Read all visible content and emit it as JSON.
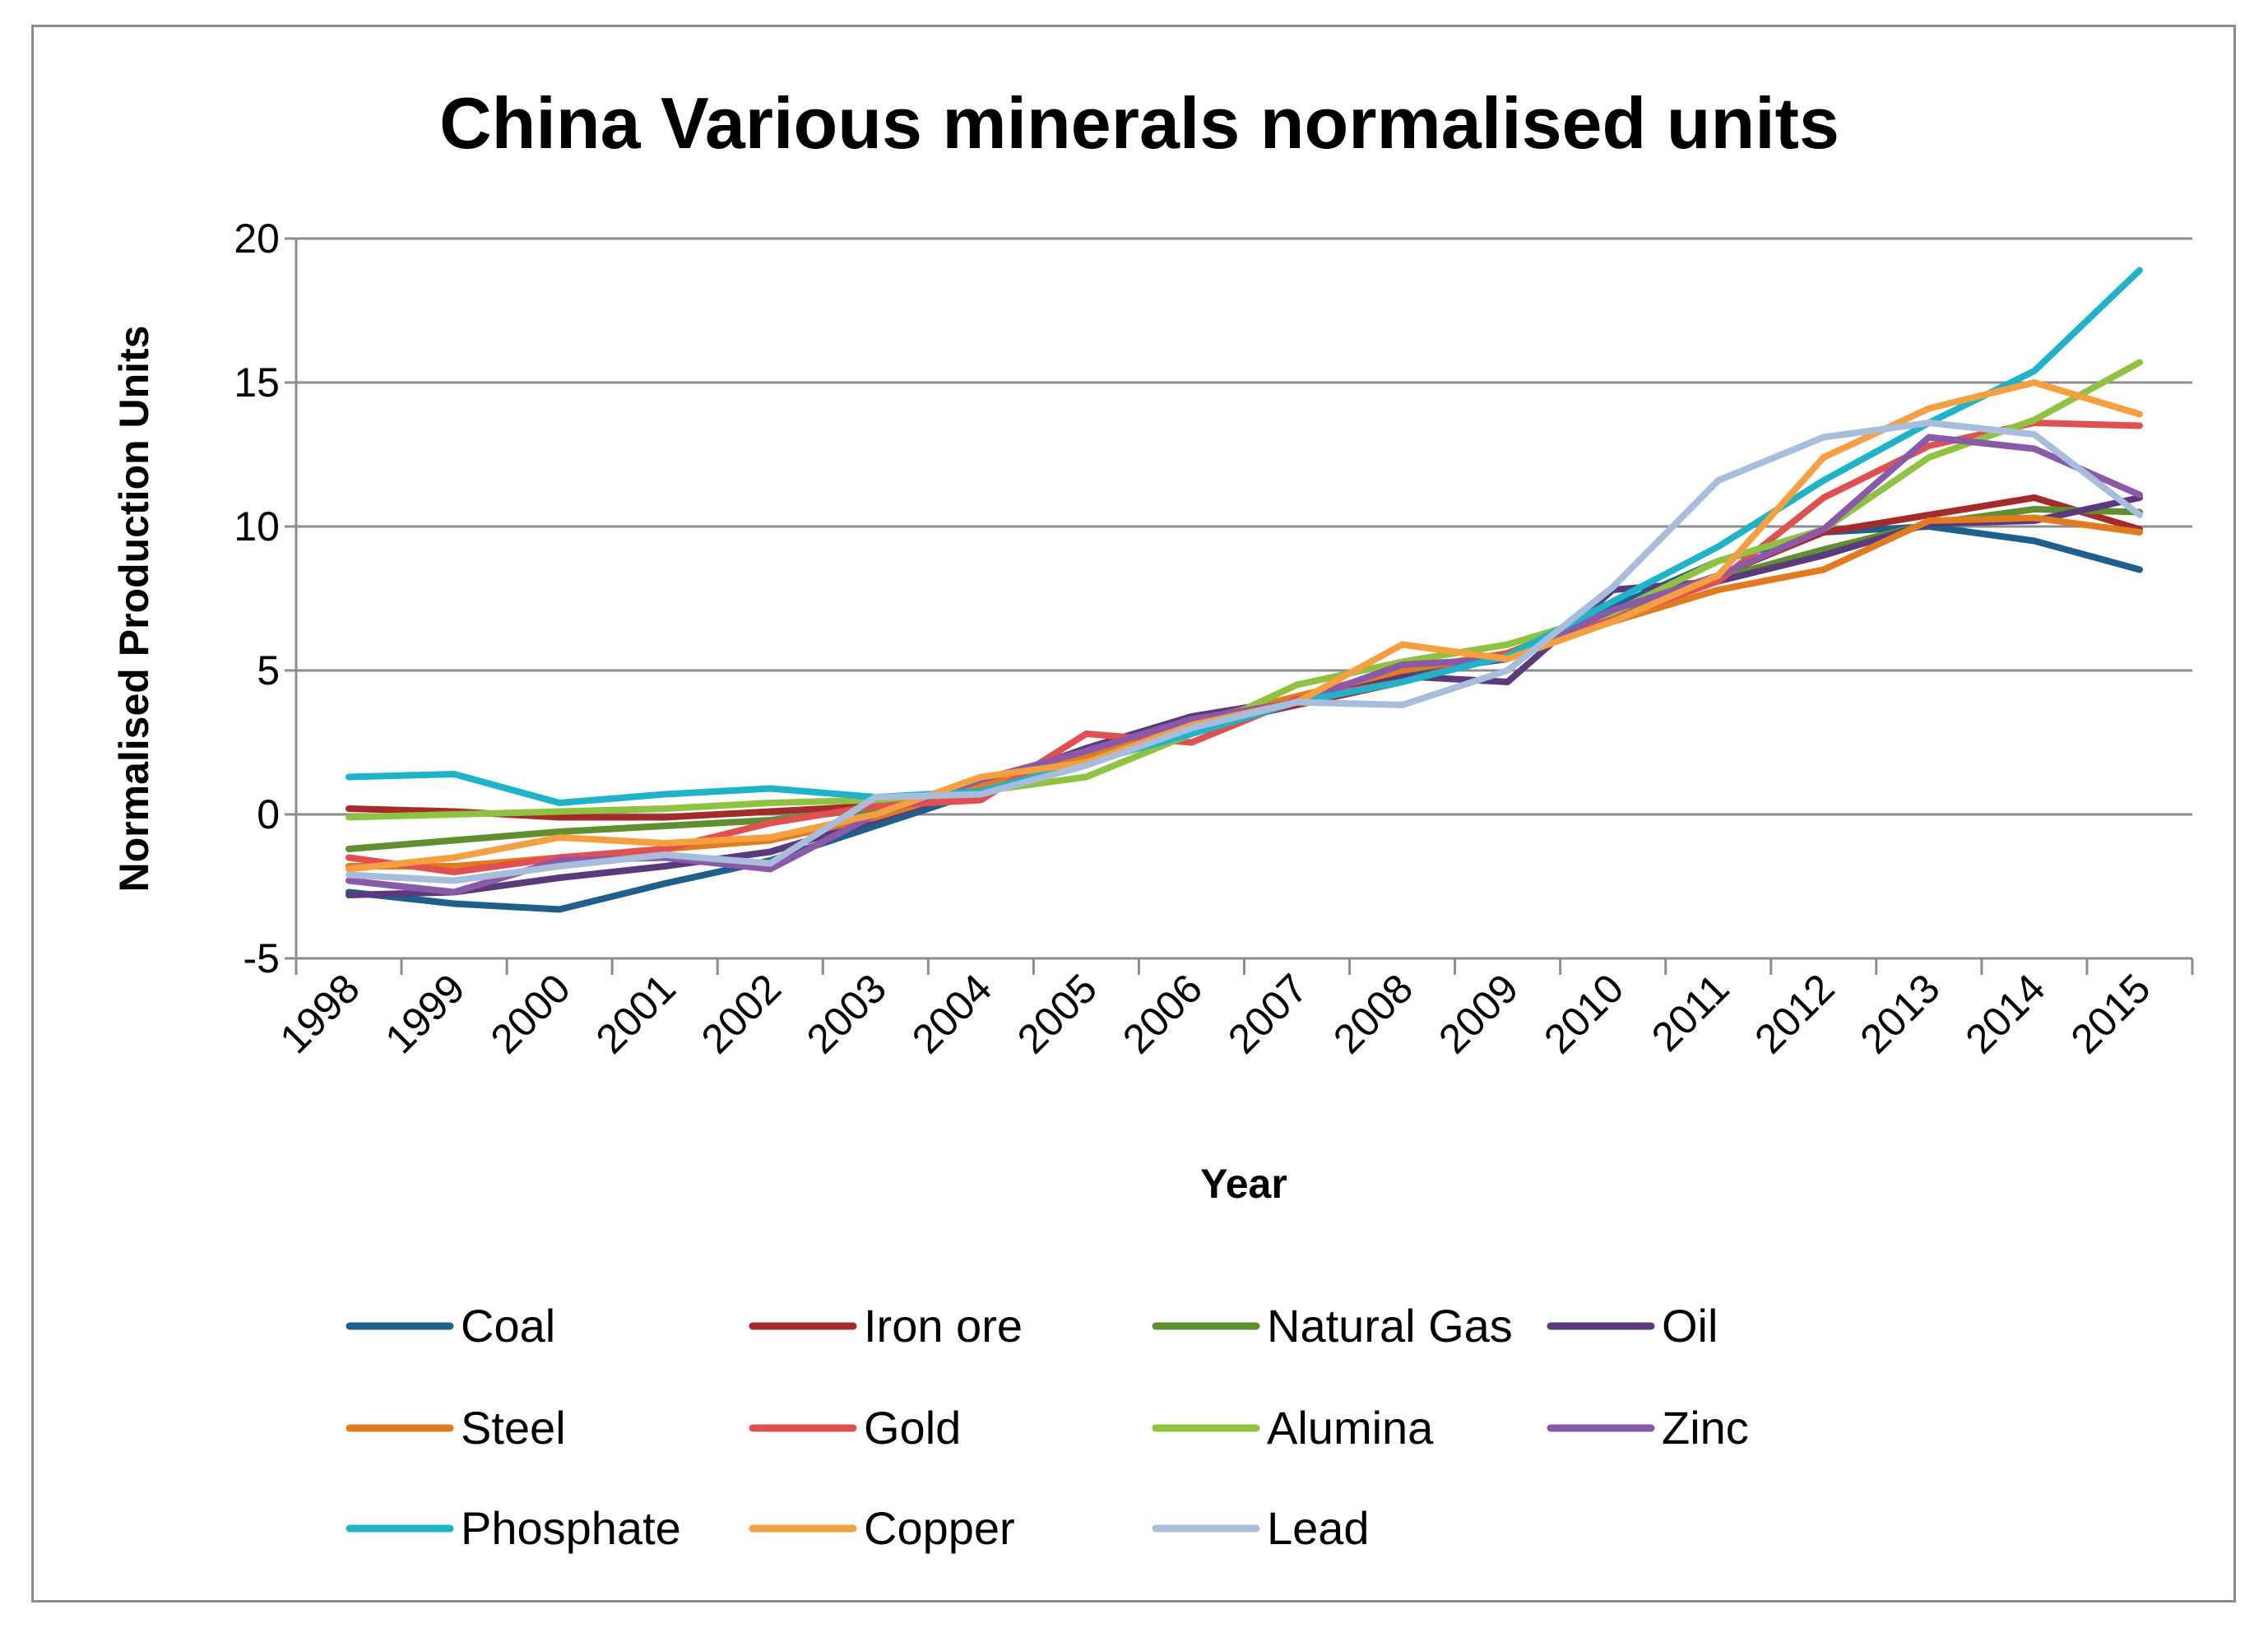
{
  "chart_data": {
    "type": "line",
    "title": "China Various minerals normalised units",
    "xlabel": "Year",
    "ylabel": "Normalised Production Units",
    "ylim": [
      -5,
      20
    ],
    "yticks": [
      -5,
      0,
      5,
      10,
      15,
      20
    ],
    "grid": true,
    "legend_position": "bottom",
    "categories": [
      "1998",
      "1999",
      "2000",
      "2001",
      "2002",
      "2003",
      "2004",
      "2005",
      "2006",
      "2007",
      "2008",
      "2009",
      "2010",
      "2011",
      "2012",
      "2013",
      "2014",
      "2015"
    ],
    "series": [
      {
        "name": "Coal",
        "color": "#1f5f8b",
        "values": [
          -2.7,
          -3.1,
          -3.3,
          -2.4,
          -1.6,
          -0.4,
          0.8,
          2.0,
          3.2,
          4.0,
          4.9,
          5.4,
          7.2,
          8.8,
          9.8,
          10.0,
          9.5,
          8.5
        ]
      },
      {
        "name": "Iron ore",
        "color": "#a52a2a",
        "values": [
          0.2,
          0.1,
          -0.1,
          -0.1,
          0.1,
          0.3,
          0.7,
          1.8,
          3.0,
          3.8,
          4.6,
          5.6,
          7.0,
          8.3,
          9.8,
          10.4,
          11.0,
          9.9
        ]
      },
      {
        "name": "Natural Gas",
        "color": "#5f8f2f",
        "values": [
          -1.2,
          -0.9,
          -0.6,
          -0.4,
          -0.2,
          0.2,
          0.8,
          1.8,
          3.0,
          4.0,
          5.0,
          5.6,
          7.0,
          8.2,
          9.2,
          10.1,
          10.6,
          10.5
        ]
      },
      {
        "name": "Oil",
        "color": "#5a3a7a",
        "values": [
          -2.8,
          -2.7,
          -2.2,
          -1.8,
          -1.3,
          -0.2,
          1.0,
          2.3,
          3.4,
          4.0,
          4.8,
          4.6,
          7.8,
          8.1,
          9.0,
          10.1,
          10.2,
          11.0
        ]
      },
      {
        "name": "Steel",
        "color": "#e07b20",
        "values": [
          -1.8,
          -1.8,
          -1.5,
          -1.2,
          -0.9,
          -0.1,
          1.0,
          2.0,
          3.2,
          4.1,
          5.0,
          5.6,
          6.7,
          7.8,
          8.5,
          10.2,
          10.3,
          9.8
        ]
      },
      {
        "name": "Gold",
        "color": "#e05050",
        "values": [
          -1.5,
          -2.0,
          -1.5,
          -1.2,
          -0.3,
          0.3,
          0.5,
          2.8,
          2.5,
          4.0,
          4.6,
          5.6,
          6.8,
          8.1,
          11.0,
          12.8,
          13.6,
          13.5
        ]
      },
      {
        "name": "Alumina",
        "color": "#8ec240",
        "values": [
          -0.1,
          0.0,
          0.1,
          0.2,
          0.4,
          0.5,
          0.8,
          1.3,
          2.8,
          4.5,
          5.3,
          5.9,
          7.0,
          8.8,
          9.9,
          12.4,
          13.7,
          15.7
        ]
      },
      {
        "name": "Zinc",
        "color": "#8a5aa8",
        "values": [
          -2.3,
          -2.7,
          -1.6,
          -1.5,
          -1.9,
          0.0,
          1.2,
          2.2,
          3.3,
          3.9,
          5.2,
          5.4,
          7.1,
          8.3,
          9.9,
          13.1,
          12.7,
          11.1
        ]
      },
      {
        "name": "Phosphate",
        "color": "#1fb3c9",
        "values": [
          1.3,
          1.4,
          0.4,
          0.7,
          0.9,
          0.6,
          0.8,
          1.8,
          2.8,
          3.9,
          4.6,
          5.5,
          7.4,
          9.3,
          11.6,
          13.6,
          15.4,
          18.9
        ]
      },
      {
        "name": "Copper",
        "color": "#f5a040",
        "values": [
          -1.9,
          -1.5,
          -0.8,
          -1.0,
          -0.8,
          0.0,
          1.3,
          1.8,
          3.1,
          3.9,
          5.9,
          5.4,
          6.7,
          8.3,
          12.4,
          14.1,
          15.0,
          13.9
        ]
      },
      {
        "name": "Lead",
        "color": "#a8bcdc",
        "values": [
          -2.1,
          -2.3,
          -1.8,
          -1.4,
          -1.7,
          0.6,
          0.7,
          1.7,
          3.0,
          3.9,
          3.8,
          5.0,
          7.9,
          11.6,
          13.1,
          13.6,
          13.2,
          10.4
        ]
      }
    ]
  }
}
